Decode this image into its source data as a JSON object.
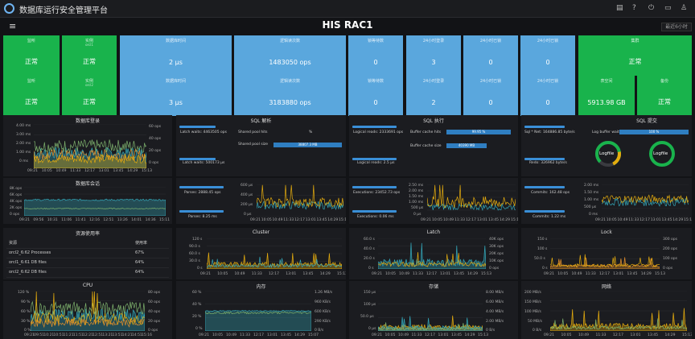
{
  "app": {
    "title": "数据库运行安全管理平台",
    "dashboard_title": "HIS RAC1",
    "time_range": "最近6小时"
  },
  "stats": {
    "r1": [
      {
        "title": "监听",
        "sub": "",
        "value": "正常",
        "color": "green"
      },
      {
        "title": "实例",
        "sub": "orcl1",
        "value": "正常",
        "color": "green"
      },
      {
        "title": "数据库时间",
        "sub": "",
        "value": "2 μs",
        "color": "blue"
      },
      {
        "title": "逻辑读次数",
        "sub": "",
        "value": "1483050 ops",
        "color": "blue"
      },
      {
        "title": "锁等待数",
        "sub": "",
        "value": "0",
        "color": "blue"
      },
      {
        "title": "24小时登录",
        "sub": "",
        "value": "3",
        "color": "blue"
      },
      {
        "title": "24小时已锁",
        "sub": "",
        "value": "0",
        "color": "blue"
      },
      {
        "title": "24小时已锁",
        "sub": "",
        "value": "0",
        "color": "blue"
      },
      {
        "title": "集群",
        "sub": "",
        "value": "正常",
        "color": "green"
      }
    ],
    "r2": [
      {
        "title": "监听",
        "sub": "",
        "value": "正常",
        "color": "green"
      },
      {
        "title": "实例",
        "sub": "orcl2",
        "value": "正常",
        "color": "green"
      },
      {
        "title": "数据库时间",
        "sub": "",
        "value": "3 μs",
        "color": "blue"
      },
      {
        "title": "逻辑读次数",
        "sub": "",
        "value": "3183880 ops",
        "color": "blue"
      },
      {
        "title": "锁等待数",
        "sub": "",
        "value": "0",
        "color": "blue"
      },
      {
        "title": "24小时登录",
        "sub": "",
        "value": "2",
        "color": "blue"
      },
      {
        "title": "24小时已锁",
        "sub": "",
        "value": "0",
        "color": "blue"
      },
      {
        "title": "24小时已锁",
        "sub": "",
        "value": "0",
        "color": "blue"
      },
      {
        "title": "表空间",
        "sub": "",
        "value": "5913.98 GB",
        "color": "green"
      },
      {
        "title": "备份",
        "sub": "",
        "value": "正常",
        "color": "green"
      }
    ]
  },
  "panels": {
    "db_logins": {
      "title": "数据库登录",
      "yleft": [
        "4.00 ms",
        "3.00 ms",
        "2.00 ms",
        "1.00 ms",
        "0 ms"
      ],
      "yright": [
        "60 ops",
        "40 ops",
        "20 ops",
        "0 ops"
      ],
      "x": [
        "09:21",
        "10:05",
        "10:49",
        "11:33",
        "12:17",
        "13:01",
        "13:45",
        "14:29",
        "15:13"
      ]
    },
    "db_sessions": {
      "title": "数据库会话",
      "yleft": [
        "8K ops",
        "6K ops",
        "4K ops",
        "2K ops",
        "0 ops"
      ],
      "x": [
        "09:21",
        "09:56",
        "10:31",
        "11:06",
        "11:41",
        "12:16",
        "12:51",
        "13:26",
        "14:01",
        "14:36",
        "15:11"
      ]
    },
    "sql_parse": {
      "title": "SQL 解析",
      "shared_hit_label": "Shared pool hits",
      "shared_hit_value": "%",
      "shared_size_label": "Shared pool size",
      "shared_size_value": "38807.3 MB",
      "latch_waits_label": "Latch waits:",
      "latch_waits_value": "4463505 ops",
      "latch_waits2_label": "Latch waits:",
      "latch_waits2_value": "500173 μs",
      "parses_label": "Parses:",
      "parses_value": "2888.45 ops",
      "parses2_label": "Parses:",
      "parses2_value": "8.25 ms",
      "ylabels": [
        "600 μs",
        "400 μs",
        "200 μs",
        "0 μs"
      ],
      "x": [
        "09:21",
        "10:05",
        "10:49",
        "11:33",
        "12:17",
        "13:01",
        "13:45",
        "14:29",
        "15:13"
      ]
    },
    "sql_exec": {
      "title": "SQL 执行",
      "buffer_hit_label": "Buffer cache hits",
      "buffer_hit_value": "99.95 %",
      "buffer_size_label": "Buffer cache size",
      "buffer_size_value": "40390 MB",
      "logical_reads_label": "Logical reads:",
      "logical_reads_value": "2333691 ops",
      "logical_reads2_label": "Logical reads:",
      "logical_reads2_value": "2.5 μs",
      "executions_label": "Executions:",
      "executions_value": "23452.73 ops",
      "executions2_label": "Executions:",
      "executions2_value": "0.06 ms",
      "ylabels": [
        "2.50 ms",
        "2.00 ms",
        "1.50 ms",
        "1.00 ms",
        "500 μs",
        "0 μs"
      ],
      "x": [
        "09:21",
        "10:05",
        "10:49",
        "11:33",
        "12:17",
        "13:01",
        "13:45",
        "14:29",
        "15:13"
      ]
    },
    "sql_commit": {
      "title": "SQL 提交",
      "log_buffer_label": "Log buffer waits",
      "log_buffer_value": "100 %",
      "sql_net_label": "Sql * Net:",
      "sql_net_value": "164886.85 byte/s",
      "redo_label": "Redo:",
      "redo_value": "326962 byte/s",
      "commits_label": "Commits:",
      "commits_value": "162.48 ops",
      "commits2_label": "Commits:",
      "commits2_value": "1.22 ms",
      "gauge_label": "Logfile",
      "ylabels": [
        "2.00 ms",
        "1.50 ms",
        "1.00 ms",
        "500 μs",
        "0 ms"
      ],
      "x": [
        "09:21",
        "10:05",
        "10:49",
        "11:33",
        "12:17",
        "13:01",
        "13:45",
        "14:29",
        "15:13"
      ]
    },
    "resources": {
      "title": "资源使用率",
      "col1": "资源",
      "col2": "使用率",
      "rows": [
        {
          "name": "orcl2_6:62  Processes",
          "value": "67%"
        },
        {
          "name": "orcl1_6:61  DB files",
          "value": "64%"
        },
        {
          "name": "orcl2_6:62  DB files",
          "value": "64%"
        }
      ]
    },
    "cluster": {
      "title": "Cluster",
      "ylabels": [
        "120 s",
        "90.0 s",
        "60.0 s",
        "30.0 s",
        "0 s"
      ],
      "x": [
        "09:21",
        "10:05",
        "10:49",
        "11:33",
        "12:17",
        "13:01",
        "13:45",
        "14:29",
        "15:13"
      ]
    },
    "latch": {
      "title": "Latch",
      "yleft": [
        "60.0 s",
        "40.0 s",
        "20.0 s",
        "0 s"
      ],
      "yright": [
        "40K ops",
        "30K ops",
        "20K ops",
        "10K ops",
        "0 ops"
      ],
      "x": [
        "09:21",
        "10:05",
        "10:49",
        "11:33",
        "12:17",
        "13:01",
        "13:45",
        "14:29",
        "15:13"
      ]
    },
    "lock": {
      "title": "Lock",
      "yleft": [
        "150 s",
        "100 s",
        "50.0 s",
        "0 s"
      ],
      "yright": [
        "300 ops",
        "200 ops",
        "100 ops",
        "0 ops"
      ],
      "x": [
        "09:21",
        "10:05",
        "10:49",
        "11:33",
        "12:17",
        "13:01",
        "13:45",
        "14:29",
        "15:13"
      ]
    },
    "cpu": {
      "title": "CPU",
      "yleft": [
        "120 %",
        "90 %",
        "60 %",
        "30 %",
        "0 %"
      ],
      "yright": [
        "80 ops",
        "60 ops",
        "40 ops",
        "20 ops",
        "0 ops"
      ],
      "x": [
        "09:21",
        "09:51",
        "10:21",
        "10:51",
        "11:21",
        "11:51",
        "12:21",
        "12:51",
        "13:21",
        "13:51",
        "14:21",
        "14:51",
        "15:16"
      ]
    },
    "memory": {
      "title": "内存",
      "yleft": [
        "60 %",
        "40 %",
        "20 %",
        "0 %"
      ],
      "yright": [
        "1.26 MB/s",
        "960 KB/s",
        "600 KB/s",
        "290 KB/s",
        "0 B/s"
      ],
      "x": [
        "09:21",
        "10:05",
        "10:49",
        "11:33",
        "12:17",
        "13:01",
        "13:45",
        "14:29",
        "15:07"
      ]
    },
    "storage": {
      "title": "存储",
      "yleft": [
        "150 μs",
        "100 μs",
        "50.0 μs",
        "0 μs"
      ],
      "yright": [
        "8.00 MB/s",
        "6.00 MB/s",
        "4.00 MB/s",
        "2.00 MB/s",
        "0 B/s"
      ],
      "x": [
        "09:21",
        "10:05",
        "10:49",
        "11:33",
        "12:17",
        "13:01",
        "13:45",
        "14:29",
        "15:13"
      ]
    },
    "network": {
      "title": "网络",
      "ylabels": [
        "200 MB/s",
        "150 MB/s",
        "100 MB/s",
        "50 MB/s",
        "0 B/s"
      ],
      "x": [
        "09:21",
        "10:05",
        "10:49",
        "11:33",
        "12:17",
        "13:01",
        "13:45",
        "14:29",
        "15:13"
      ]
    }
  },
  "colors": {
    "green": "#19b34c",
    "blue": "#5aa7dd",
    "yellow": "#e5ac0e",
    "teal": "#33a6b8",
    "orange": "#e08e2c",
    "line_green": "#7eb26d"
  }
}
